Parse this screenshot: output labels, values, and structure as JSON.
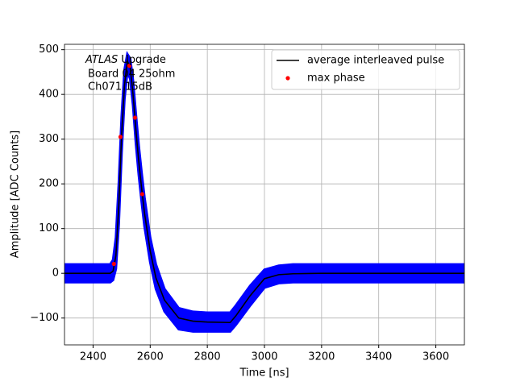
{
  "chart_data": {
    "type": "line",
    "xlabel": "Time [ns]",
    "ylabel": "Amplitude [ADC Counts]",
    "annotation": {
      "experiment": "ATLAS",
      "label": "Upgrade",
      "lines": [
        "Board 04 25ohm",
        "Ch071 15dB"
      ]
    },
    "xlim": [
      2300,
      3700
    ],
    "ylim": [
      -160,
      512
    ],
    "xticks": [
      2400,
      2600,
      2800,
      3000,
      3200,
      3400,
      3600
    ],
    "yticks": [
      {
        "value": -100,
        "label": "−100"
      },
      0,
      100,
      200,
      300,
      400,
      500
    ],
    "grid": true,
    "legend": "upper right",
    "band": {
      "color": "#0000ff",
      "x": [
        2300,
        2460,
        2470,
        2480,
        2490,
        2500,
        2510,
        2520,
        2530,
        2540,
        2550,
        2560,
        2570,
        2580,
        2600,
        2620,
        2650,
        2700,
        2750,
        2800,
        2880,
        2900,
        2950,
        3000,
        3050,
        3100,
        3200,
        3700
      ],
      "low": [
        -20,
        -20,
        -15,
        10,
        110,
        270,
        390,
        450,
        435,
        375,
        290,
        220,
        160,
        105,
        25,
        -35,
        -85,
        -125,
        -130,
        -130,
        -130,
        -115,
        -72,
        -32,
        -22,
        -20,
        -20,
        -20
      ],
      "high": [
        20,
        20,
        30,
        80,
        200,
        350,
        455,
        490,
        480,
        430,
        355,
        285,
        225,
        170,
        80,
        20,
        -35,
        -78,
        -86,
        -88,
        -88,
        -72,
        -28,
        8,
        17,
        20,
        20,
        20
      ]
    },
    "series": [
      {
        "name": "average interleaved pulse",
        "color": "#000000",
        "style": "line",
        "x": [
          2300,
          2460,
          2470,
          2480,
          2490,
          2500,
          2510,
          2520,
          2530,
          2540,
          2550,
          2560,
          2570,
          2580,
          2600,
          2620,
          2650,
          2700,
          2750,
          2800,
          2880,
          2900,
          2950,
          3000,
          3050,
          3100,
          3200,
          3700
        ],
        "values": [
          0,
          0,
          5,
          40,
          150,
          310,
          420,
          475,
          460,
          400,
          320,
          250,
          190,
          135,
          50,
          -10,
          -60,
          -100,
          -107,
          -109,
          -110,
          -95,
          -50,
          -12,
          -3,
          -1,
          0,
          0
        ]
      },
      {
        "name": "max phase",
        "color": "#ff0000",
        "style": "points",
        "x": [
          2473,
          2496,
          2527,
          2547,
          2572
        ],
        "values": [
          21,
          305,
          464,
          348,
          177
        ]
      }
    ]
  }
}
